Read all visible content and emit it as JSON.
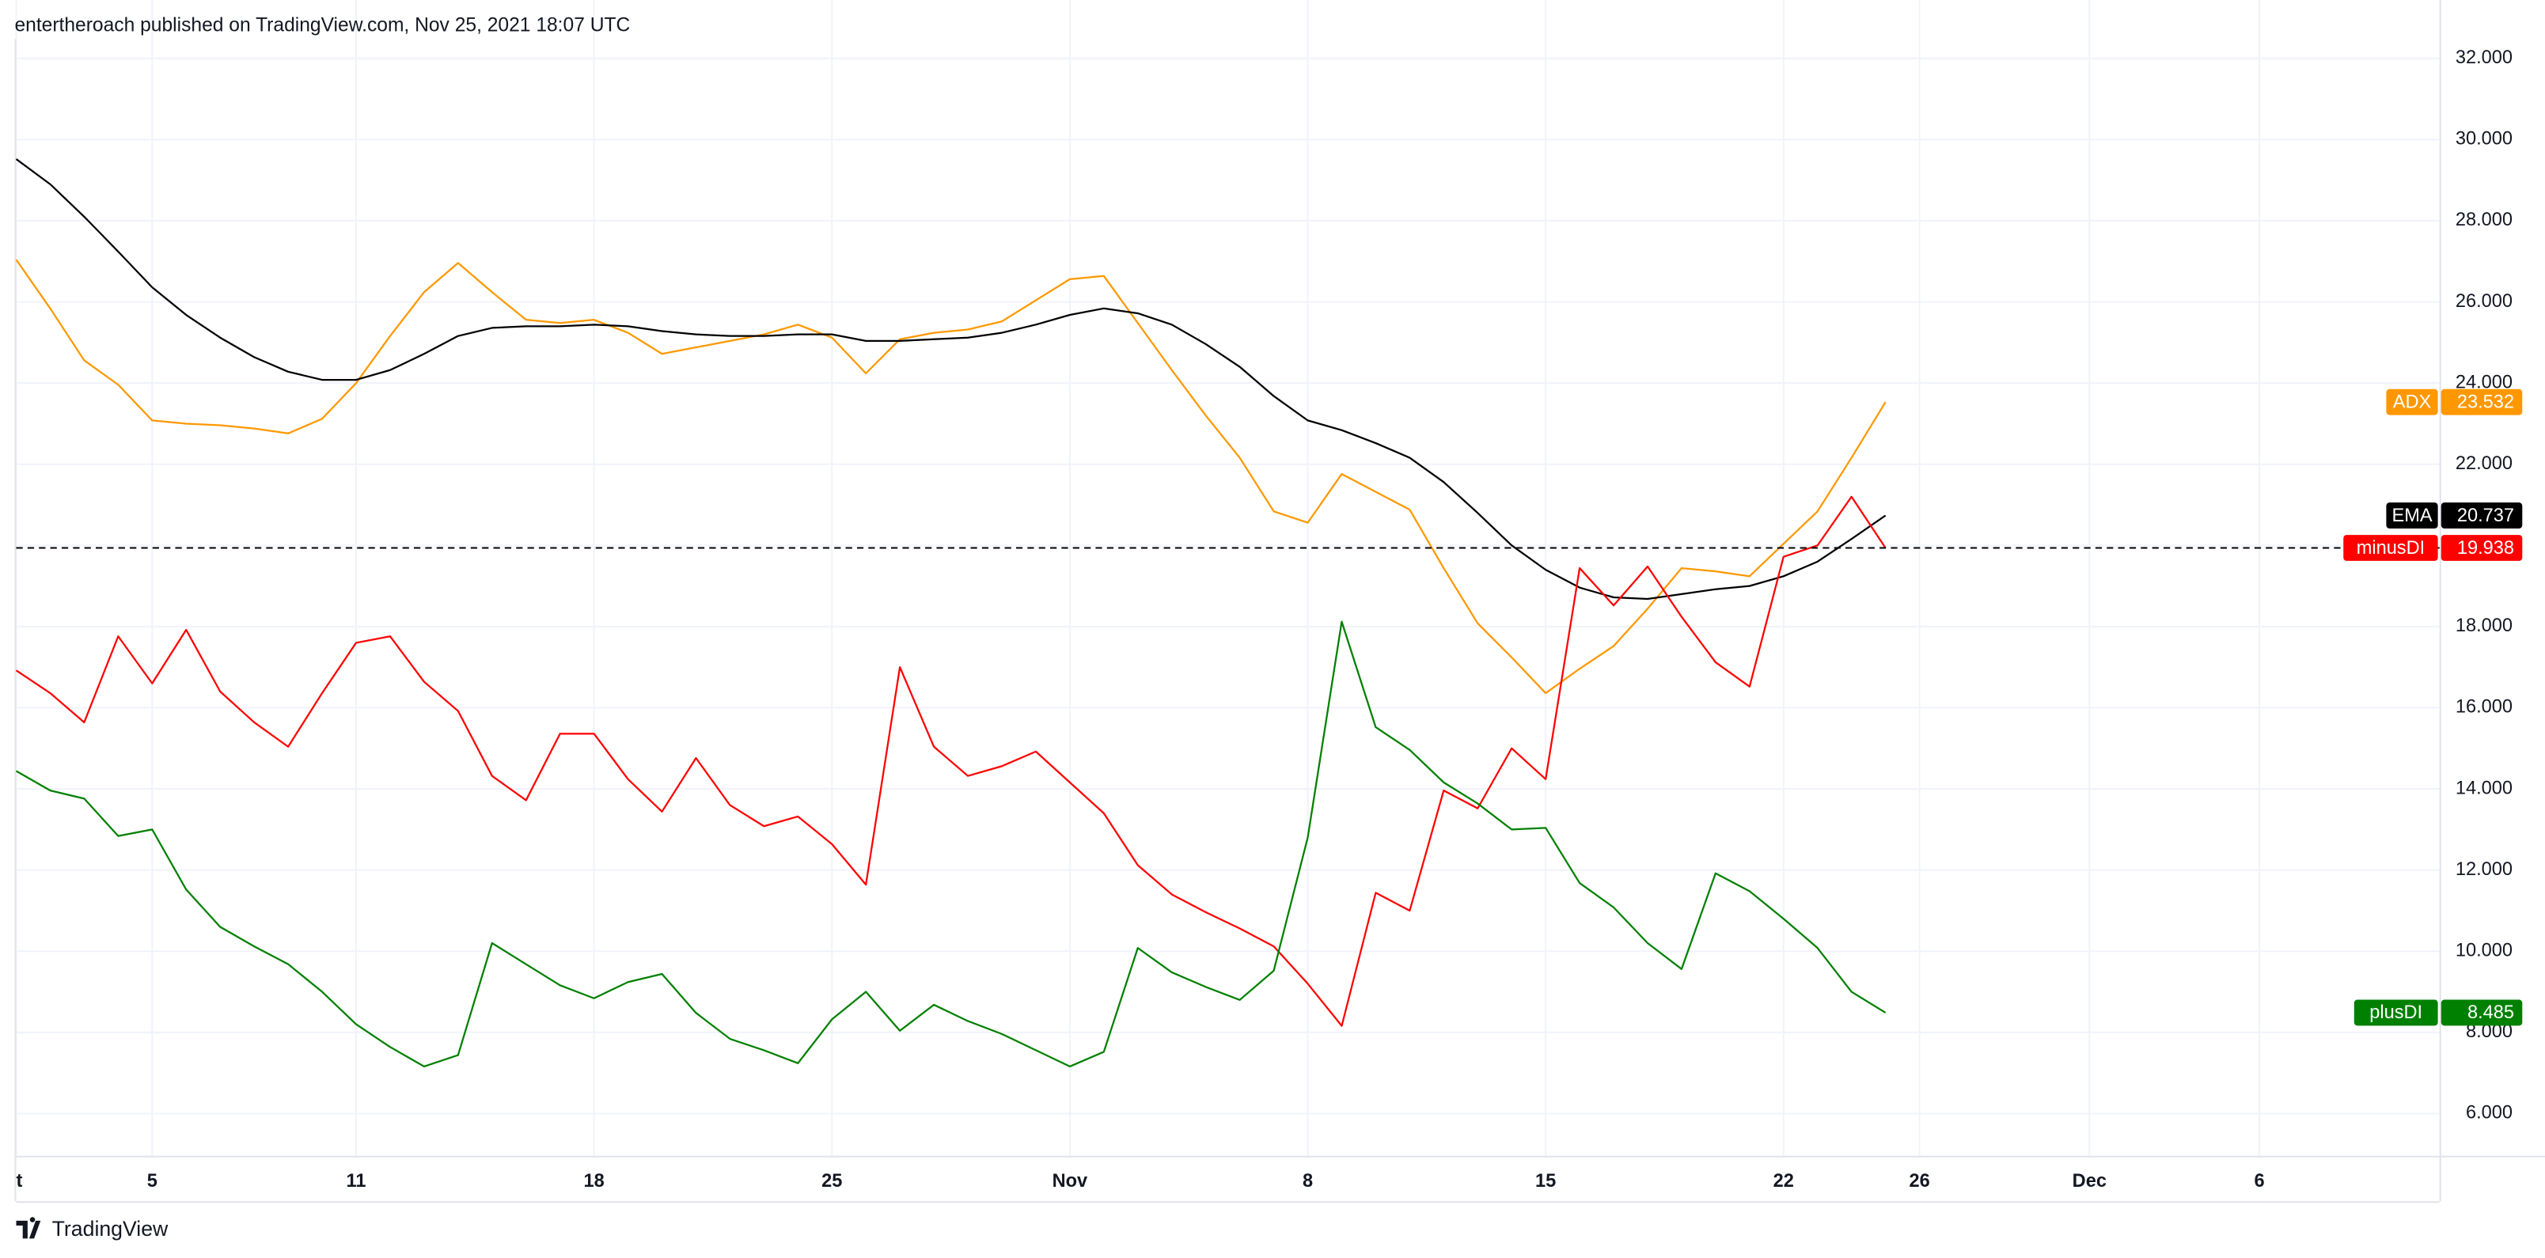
{
  "chart_data": {
    "type": "line",
    "title": "entertheroach published on TradingView.com, Nov 25, 2021 18:07 UTC",
    "brand": "TradingView",
    "x": [
      0,
      1,
      2,
      3,
      4,
      5,
      6,
      7,
      8,
      9,
      10,
      11,
      12,
      13,
      14,
      15,
      16,
      17,
      18,
      19,
      20,
      21,
      22,
      23,
      24,
      25,
      26,
      27,
      28,
      29,
      30,
      31,
      32,
      33,
      34,
      35,
      36,
      37,
      38,
      39,
      40,
      41,
      42,
      43,
      44,
      45,
      46,
      47,
      48,
      49,
      50,
      51,
      52,
      53,
      54,
      55
    ],
    "xlim": [
      0,
      71.3
    ],
    "xticks": [
      {
        "value": 0,
        "label": "t"
      },
      {
        "value": 4,
        "label": "5"
      },
      {
        "value": 10,
        "label": "11"
      },
      {
        "value": 17,
        "label": "18"
      },
      {
        "value": 24,
        "label": "25"
      },
      {
        "value": 31,
        "label": "Nov"
      },
      {
        "value": 38,
        "label": "8"
      },
      {
        "value": 45,
        "label": "15"
      },
      {
        "value": 52,
        "label": "22"
      },
      {
        "value": 56,
        "label": "26"
      },
      {
        "value": 61,
        "label": "Dec"
      },
      {
        "value": 66,
        "label": "6"
      }
    ],
    "ylim": [
      4.96,
      33.44
    ],
    "yticks": [
      {
        "value": 6,
        "label": "6.000"
      },
      {
        "value": 8,
        "label": "8.000"
      },
      {
        "value": 10,
        "label": "10.000"
      },
      {
        "value": 12,
        "label": "12.000"
      },
      {
        "value": 14,
        "label": "14.000"
      },
      {
        "value": 16,
        "label": "16.000"
      },
      {
        "value": 18,
        "label": "18.000"
      },
      {
        "value": 20,
        "label": "20.000"
      },
      {
        "value": 22,
        "label": "22.000"
      },
      {
        "value": 24,
        "label": "24.000"
      },
      {
        "value": 26,
        "label": "26.000"
      },
      {
        "value": 28,
        "label": "28.000"
      },
      {
        "value": 30,
        "label": "30.000"
      },
      {
        "value": 32,
        "label": "32.000"
      }
    ],
    "grid": true,
    "series": [
      {
        "name": "ADX",
        "color": "#ff9800",
        "values": [
          27.04,
          25.84,
          24.56,
          23.96,
          23.08,
          23.0,
          22.96,
          22.88,
          22.76,
          23.12,
          24.0,
          25.16,
          26.24,
          26.96,
          26.24,
          25.56,
          25.48,
          25.56,
          25.24,
          24.72,
          24.88,
          25.04,
          25.2,
          25.44,
          25.12,
          24.24,
          25.08,
          25.24,
          25.32,
          25.52,
          26.04,
          26.56,
          26.64,
          25.48,
          24.32,
          23.2,
          22.16,
          20.84,
          20.56,
          21.76,
          21.32,
          20.88,
          19.44,
          18.08,
          17.24,
          16.36,
          16.96,
          17.52,
          18.44,
          19.44,
          19.36,
          19.24,
          20.04,
          20.84,
          22.16,
          23.532
        ]
      },
      {
        "name": "EMA",
        "color": "#000000",
        "values": [
          29.52,
          28.9,
          28.1,
          27.24,
          26.36,
          25.68,
          25.12,
          24.64,
          24.28,
          24.08,
          24.08,
          24.32,
          24.72,
          25.16,
          25.36,
          25.4,
          25.4,
          25.44,
          25.4,
          25.28,
          25.2,
          25.16,
          25.16,
          25.2,
          25.2,
          25.04,
          25.04,
          25.08,
          25.12,
          25.24,
          25.44,
          25.68,
          25.84,
          25.72,
          25.44,
          24.96,
          24.4,
          23.68,
          23.08,
          22.84,
          22.52,
          22.16,
          21.56,
          20.8,
          20.0,
          19.4,
          18.96,
          18.72,
          18.68,
          18.8,
          18.92,
          19.0,
          19.24,
          19.6,
          20.16,
          20.737
        ]
      },
      {
        "name": "minusDI",
        "color": "#ff0000",
        "price_line": true,
        "values": [
          16.92,
          16.36,
          15.64,
          17.76,
          16.6,
          17.92,
          16.4,
          15.64,
          15.04,
          16.36,
          17.6,
          17.76,
          16.64,
          15.92,
          14.32,
          13.72,
          15.36,
          15.36,
          14.24,
          13.44,
          14.76,
          13.6,
          13.08,
          13.32,
          12.64,
          11.64,
          17.0,
          15.04,
          14.32,
          14.56,
          14.92,
          14.16,
          13.4,
          12.12,
          11.4,
          10.96,
          10.56,
          10.12,
          9.2,
          8.16,
          11.44,
          11.0,
          13.96,
          13.52,
          15.0,
          14.24,
          19.44,
          18.52,
          19.48,
          18.24,
          17.12,
          16.52,
          19.72,
          20.0,
          21.2,
          19.938
        ]
      },
      {
        "name": "plusDI",
        "color": "#008000",
        "values": [
          14.44,
          13.96,
          13.76,
          12.84,
          13.0,
          11.52,
          10.6,
          10.12,
          9.68,
          9.0,
          8.2,
          7.64,
          7.16,
          7.44,
          10.2,
          9.68,
          9.16,
          8.84,
          9.24,
          9.44,
          8.48,
          7.84,
          7.56,
          7.24,
          8.32,
          9.0,
          8.04,
          8.68,
          8.28,
          7.96,
          7.56,
          7.16,
          7.52,
          10.08,
          9.48,
          9.12,
          8.8,
          9.52,
          12.8,
          18.12,
          15.52,
          14.96,
          14.16,
          13.64,
          13.0,
          13.04,
          11.68,
          11.08,
          10.2,
          9.56,
          11.92,
          11.48,
          10.8,
          10.08,
          9.0,
          8.485
        ]
      }
    ]
  }
}
